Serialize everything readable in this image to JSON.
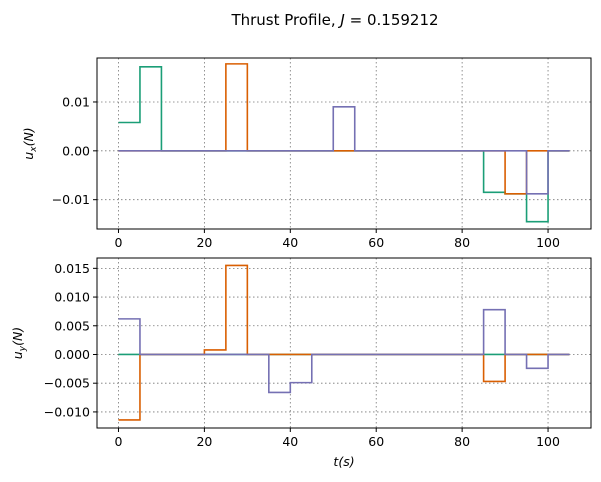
{
  "chart_data": [
    {
      "type": "line",
      "step": "post",
      "title": "Thrust Profile, J = 0.159212",
      "title_prefix": "Thrust Profile, ",
      "title_var": "J",
      "title_value": " = 0.159212",
      "xlabel": "",
      "ylabel_base": "u",
      "ylabel_sub": "x",
      "ylabel_unit": "(N)",
      "xlim": [
        -5,
        110
      ],
      "ylim": [
        -0.016,
        0.019
      ],
      "xticks": [
        0,
        20,
        40,
        60,
        80,
        100
      ],
      "yticks": [
        -0.01,
        0.0,
        0.01
      ],
      "ytick_labels": [
        "−0.01",
        "0.00",
        "0.01"
      ],
      "grid": true,
      "series": [
        {
          "color": "#1b9e77",
          "x": [
            0,
            5,
            10,
            85,
            90,
            95,
            100,
            105
          ],
          "y": [
            0.0058,
            0.0172,
            0.0,
            -0.0085,
            -0.0088,
            -0.0145,
            0.0,
            0.0
          ]
        },
        {
          "color": "#d95f02",
          "x": [
            0,
            25,
            30,
            90,
            95,
            105
          ],
          "y": [
            0.0,
            0.0178,
            0.0,
            -0.0088,
            0.0,
            0.0
          ]
        },
        {
          "color": "#7570b3",
          "x": [
            0,
            50,
            55,
            95,
            100,
            105
          ],
          "y": [
            0.0,
            0.009,
            0.0,
            -0.0088,
            0.0,
            0.0
          ]
        }
      ]
    },
    {
      "type": "line",
      "step": "post",
      "title": "",
      "xlabel_base": "t",
      "xlabel_unit": "(s)",
      "ylabel_base": "u",
      "ylabel_sub": "y",
      "ylabel_unit": "(N)",
      "xlim": [
        -5,
        110
      ],
      "ylim": [
        -0.0128,
        0.0168
      ],
      "xticks": [
        0,
        20,
        40,
        60,
        80,
        100
      ],
      "yticks": [
        -0.01,
        -0.005,
        0.0,
        0.005,
        0.01,
        0.015
      ],
      "ytick_labels": [
        "−0.010",
        "−0.005",
        "0.000",
        "0.005",
        "0.010",
        "0.015"
      ],
      "grid": true,
      "series": [
        {
          "color": "#1b9e77",
          "x": [
            0,
            105
          ],
          "y": [
            0.0,
            0.0
          ]
        },
        {
          "color": "#d95f02",
          "x": [
            0,
            5,
            20,
            25,
            30,
            85,
            90,
            105
          ],
          "y": [
            -0.0114,
            0.0,
            0.0008,
            0.0155,
            0.0,
            -0.0047,
            0.0,
            0.0
          ]
        },
        {
          "color": "#7570b3",
          "x": [
            0,
            5,
            35,
            40,
            45,
            85,
            90,
            95,
            100,
            105
          ],
          "y": [
            0.0062,
            0.0,
            -0.0066,
            -0.0049,
            0.0,
            0.0078,
            0.0,
            -0.0024,
            0.0,
            0.0
          ]
        }
      ]
    }
  ]
}
